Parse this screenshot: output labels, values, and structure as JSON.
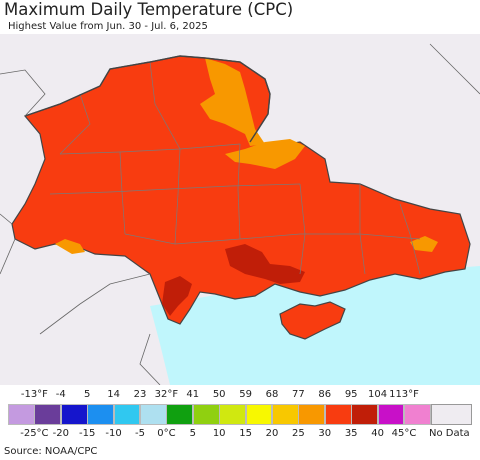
{
  "title": "Maximum Daily Temperature (CPC)",
  "subtitle": "Highest Value from Jun. 30 - Jul. 6, 2025",
  "source": "Source: NOAA/CPC",
  "legend": {
    "f_ticks": [
      "-13°F",
      "-4",
      "5",
      "14",
      "23",
      "32°F",
      "41",
      "50",
      "59",
      "68",
      "77",
      "86",
      "95",
      "104",
      "113°F"
    ],
    "c_ticks": [
      "-25°C",
      "-20",
      "-15",
      "-10",
      "-5",
      "0°C",
      "5",
      "10",
      "15",
      "20",
      "25",
      "30",
      "35",
      "40",
      "45°C"
    ],
    "colors": [
      "#c49ae0",
      "#6a3d9a",
      "#1515cc",
      "#1c8ff0",
      "#30c8f0",
      "#aee0f0",
      "#10a010",
      "#90d010",
      "#d0e810",
      "#f8f800",
      "#f8c800",
      "#f89800",
      "#f83c10",
      "#c01e08",
      "#c810c8",
      "#f080d0"
    ],
    "nodata_label": "No Data",
    "nodata_color": "#efecf1"
  },
  "map": {
    "land_fill": "#f83c10",
    "cooler_fill": "#f89800",
    "hotter_fill": "#c01e08",
    "sea_fill": "#c0f6fc",
    "outside_fill": "#efecf1",
    "border_color": "#444444",
    "admin_color": "#7a7a7a"
  }
}
